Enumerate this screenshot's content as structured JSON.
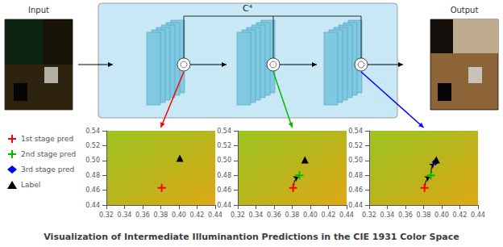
{
  "chart_data": {
    "type": "scatter",
    "title": "Visualization of Intermediate Illuminantion Predictions in the CIE 1931 Color Space",
    "annotations": [
      "Input",
      "Output",
      "C⁴"
    ],
    "grid": false,
    "legend": "left",
    "series": [
      {
        "name": "1st stage pred",
        "color": "red",
        "marker": "plus"
      },
      {
        "name": "2nd stage pred",
        "color": "#00bb00",
        "marker": "plus"
      },
      {
        "name": "3rd stage pred",
        "color": "blue",
        "marker": "diamond"
      },
      {
        "name": "Label",
        "color": "black",
        "marker": "triangle"
      }
    ],
    "panels": [
      {
        "xlim": [
          0.32,
          0.44
        ],
        "ylim": [
          0.44,
          0.54
        ],
        "xticks": [
          0.32,
          0.34,
          0.36,
          0.38,
          {
            "value": 0.4,
            "label": "0.40"
          },
          0.42,
          0.44
        ],
        "yticks": [
          0.44,
          0.46,
          0.48,
          {
            "value": 0.5,
            "label": "0.50"
          },
          0.52,
          0.54
        ],
        "points": [
          {
            "series": "1st stage pred",
            "x": 0.381,
            "y": 0.463
          },
          {
            "series": "Label",
            "x": 0.401,
            "y": 0.503
          }
        ],
        "arrows": []
      },
      {
        "xlim": [
          0.32,
          0.44
        ],
        "ylim": [
          0.44,
          0.54
        ],
        "xticks": [
          0.32,
          0.34,
          0.36,
          0.38,
          {
            "value": 0.4,
            "label": "0.40"
          },
          0.42,
          0.44
        ],
        "yticks": [
          0.44,
          0.46,
          0.48,
          {
            "value": 0.5,
            "label": "0.50"
          },
          0.52,
          0.54
        ],
        "points": [
          {
            "series": "1st stage pred",
            "x": 0.381,
            "y": 0.463
          },
          {
            "series": "2nd stage pred",
            "x": 0.388,
            "y": 0.48
          },
          {
            "series": "Label",
            "x": 0.394,
            "y": 0.501
          }
        ],
        "arrows": [
          {
            "x1": 0.382,
            "y1": 0.466,
            "x2": 0.387,
            "y2": 0.478
          }
        ]
      },
      {
        "xlim": [
          0.32,
          0.44
        ],
        "ylim": [
          0.44,
          0.54
        ],
        "xticks": [
          0.32,
          0.34,
          0.36,
          0.38,
          {
            "value": 0.4,
            "label": "0.40"
          },
          0.42,
          0.44
        ],
        "yticks": [
          0.44,
          0.46,
          0.48,
          {
            "value": 0.5,
            "label": "0.50"
          },
          0.52,
          0.54
        ],
        "points": [
          {
            "series": "1st stage pred",
            "x": 0.381,
            "y": 0.463
          },
          {
            "series": "2nd stage pred",
            "x": 0.388,
            "y": 0.48
          },
          {
            "series": "3rd stage pred",
            "x": 0.393,
            "y": 0.498
          },
          {
            "series": "Label",
            "x": 0.394,
            "y": 0.501
          }
        ],
        "arrows": [
          {
            "x1": 0.382,
            "y1": 0.466,
            "x2": 0.387,
            "y2": 0.478
          },
          {
            "x1": 0.389,
            "y1": 0.483,
            "x2": 0.392,
            "y2": 0.496
          }
        ]
      }
    ]
  }
}
